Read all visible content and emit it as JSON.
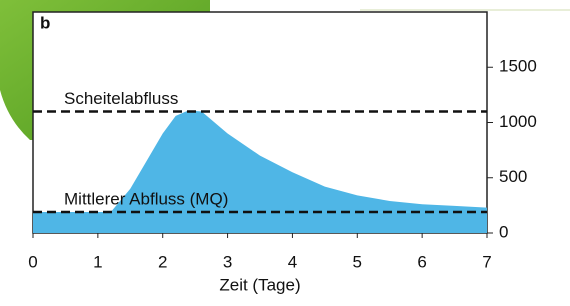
{
  "chart_data": {
    "type": "area",
    "panel_label": "b",
    "xlabel": "Zeit (Tage)",
    "x": [
      0,
      1.2,
      1.5,
      1.8,
      2.0,
      2.2,
      2.4,
      2.6,
      2.8,
      3.0,
      3.5,
      4.0,
      4.5,
      5.0,
      5.5,
      6.0,
      6.5,
      7.0
    ],
    "series": [
      {
        "color": "#4fb6e6",
        "values": [
          190,
          190,
          400,
          700,
          900,
          1060,
          1110,
          1100,
          1000,
          900,
          700,
          550,
          420,
          340,
          290,
          260,
          245,
          230
        ]
      }
    ],
    "reference_lines": [
      {
        "label": "Scheitelabfluss",
        "value": 1100
      },
      {
        "label": "Mittlerer Abfluss (MQ)",
        "value": 190
      }
    ],
    "xlim": [
      0,
      7
    ],
    "xticks": [
      0,
      1,
      2,
      3,
      4,
      5,
      6,
      7
    ],
    "ylim": [
      0,
      2000
    ],
    "yticks": [
      0,
      500,
      1000,
      1500
    ]
  }
}
